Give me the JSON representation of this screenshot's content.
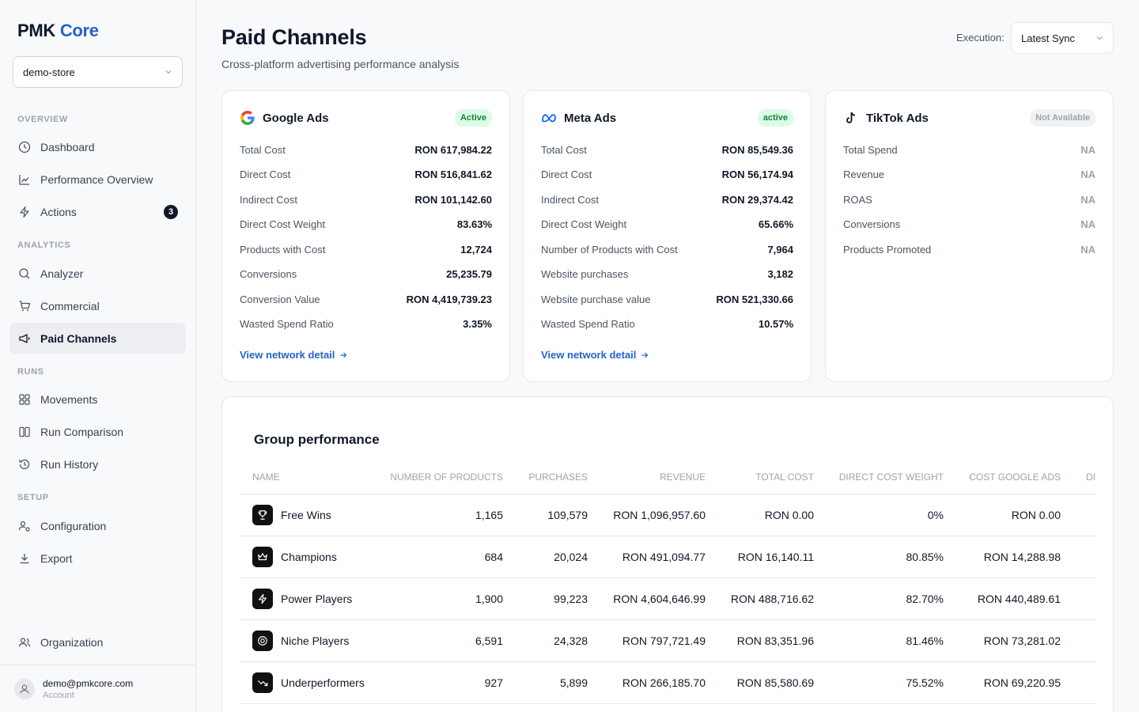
{
  "sidebar": {
    "brand_main": "PMK",
    "brand_accent": "Core",
    "store": "demo-store",
    "sections": {
      "overview": "OVERVIEW",
      "analytics": "ANALYTICS",
      "runs": "RUNS",
      "setup": "SETUP"
    },
    "items": {
      "dashboard": "Dashboard",
      "performance": "Performance Overview",
      "actions": "Actions",
      "actions_badge": "3",
      "analyzer": "Analyzer",
      "commercial": "Commercial",
      "paid_channels": "Paid Channels",
      "movements": "Movements",
      "run_comparison": "Run Comparison",
      "run_history": "Run History",
      "configuration": "Configuration",
      "export": "Export",
      "organization": "Organization"
    },
    "account": {
      "email": "demo@pmkcore.com",
      "label": "Account"
    }
  },
  "header": {
    "title": "Paid Channels",
    "subtitle": "Cross-platform advertising performance analysis",
    "execution_label": "Execution:",
    "execution_value": "Latest Sync"
  },
  "cards": {
    "google": {
      "name": "Google Ads",
      "status": "Active",
      "metrics": [
        {
          "label": "Total Cost",
          "value": "RON 617,984.22"
        },
        {
          "label": "Direct Cost",
          "value": "RON 516,841.62"
        },
        {
          "label": "Indirect Cost",
          "value": "RON 101,142.60"
        },
        {
          "label": "Direct Cost Weight",
          "value": "83.63%"
        },
        {
          "label": "Products with Cost",
          "value": "12,724"
        },
        {
          "label": "Conversions",
          "value": "25,235.79"
        },
        {
          "label": "Conversion Value",
          "value": "RON 4,419,739.23"
        },
        {
          "label": "Wasted Spend Ratio",
          "value": "3.35%"
        }
      ],
      "link": "View network detail"
    },
    "meta": {
      "name": "Meta Ads",
      "status": "active",
      "metrics": [
        {
          "label": "Total Cost",
          "value": "RON 85,549.36"
        },
        {
          "label": "Direct Cost",
          "value": "RON 56,174.94"
        },
        {
          "label": "Indirect Cost",
          "value": "RON 29,374.42"
        },
        {
          "label": "Direct Cost Weight",
          "value": "65.66%"
        },
        {
          "label": "Number of Products with Cost",
          "value": "7,964"
        },
        {
          "label": "Website purchases",
          "value": "3,182"
        },
        {
          "label": "Website purchase value",
          "value": "RON 521,330.66"
        },
        {
          "label": "Wasted Spend Ratio",
          "value": "10.57%"
        }
      ],
      "link": "View network detail"
    },
    "tiktok": {
      "name": "TikTok Ads",
      "status": "Not Available",
      "metrics": [
        {
          "label": "Total Spend",
          "value": "NA"
        },
        {
          "label": "Revenue",
          "value": "NA"
        },
        {
          "label": "ROAS",
          "value": "NA"
        },
        {
          "label": "Conversions",
          "value": "NA"
        },
        {
          "label": "Products Promoted",
          "value": "NA"
        }
      ]
    }
  },
  "group_performance": {
    "title": "Group performance",
    "columns": [
      "NAME",
      "NUMBER OF PRODUCTS",
      "PURCHASES",
      "REVENUE",
      "TOTAL COST",
      "DIRECT COST WEIGHT",
      "COST GOOGLE ADS",
      "DI"
    ],
    "rows": [
      {
        "icon": "trophy-icon",
        "name": "Free Wins",
        "products": "1,165",
        "purchases": "109,579",
        "revenue": "RON 1,096,957.60",
        "total_cost": "RON 0.00",
        "dcw": "0%",
        "cost_google": "RON 0.00"
      },
      {
        "icon": "crown-icon",
        "name": "Champions",
        "products": "684",
        "purchases": "20,024",
        "revenue": "RON 491,094.77",
        "total_cost": "RON 16,140.11",
        "dcw": "80.85%",
        "cost_google": "RON 14,288.98"
      },
      {
        "icon": "bolt-icon",
        "name": "Power Players",
        "products": "1,900",
        "purchases": "99,223",
        "revenue": "RON 4,604,646.99",
        "total_cost": "RON 488,716.62",
        "dcw": "82.70%",
        "cost_google": "RON 440,489.61"
      },
      {
        "icon": "target-icon",
        "name": "Niche Players",
        "products": "6,591",
        "purchases": "24,328",
        "revenue": "RON 797,721.49",
        "total_cost": "RON 83,351.96",
        "dcw": "81.46%",
        "cost_google": "RON 73,281.02"
      },
      {
        "icon": "trend-down-icon",
        "name": "Underperformers",
        "products": "927",
        "purchases": "5,899",
        "revenue": "RON 266,185.70",
        "total_cost": "RON 85,580.69",
        "dcw": "75.52%",
        "cost_google": "RON 69,220.95"
      }
    ]
  }
}
